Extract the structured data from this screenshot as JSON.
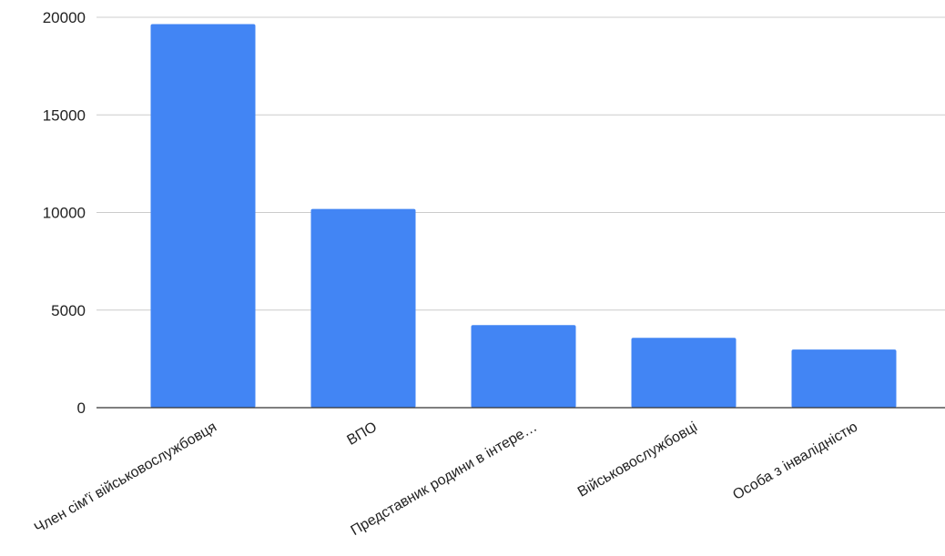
{
  "chart_data": {
    "type": "bar",
    "title": "",
    "xlabel": "",
    "ylabel": "",
    "categories": [
      "Член сім'ї військовослужбовця",
      "ВПО",
      "Представник родини в інтере…",
      "Військовослужбовці",
      "Особа з інвалідністю"
    ],
    "values": [
      19650,
      10180,
      4230,
      3580,
      2980
    ],
    "ylim": [
      0,
      20000
    ],
    "yticks": [
      "0",
      "5000",
      "10000",
      "15000",
      "20000"
    ],
    "grid": true,
    "legend": "none",
    "bar_color": "#4285f4"
  }
}
